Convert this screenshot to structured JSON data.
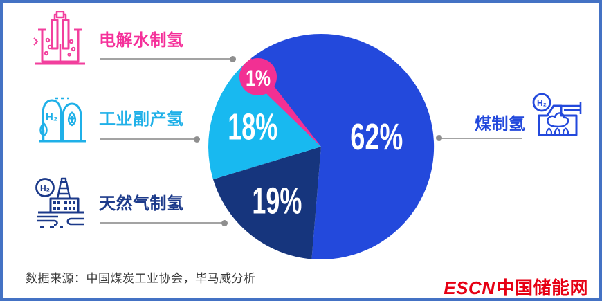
{
  "chart_data": {
    "type": "pie",
    "units": "%",
    "start_angle_deg": -38.4,
    "legend_position": "callouts-left-and-right",
    "series": [
      {
        "name": "煤制氢",
        "value": 62,
        "label": "62%",
        "color": "#2349dc"
      },
      {
        "name": "天然气制氢",
        "value": 19,
        "label": "19%",
        "color": "#16357d"
      },
      {
        "name": "工业副产氢",
        "value": 18,
        "label": "18%",
        "color": "#18b9f0"
      },
      {
        "name": "电解水制氢",
        "value": 1,
        "label": "1%",
        "color": "#f23093"
      }
    ]
  },
  "legend": {
    "left_items": [
      {
        "label": "电解水制氢",
        "color": "#f5309a",
        "icon": "electrolysis-icon"
      },
      {
        "label": "工业副产氢",
        "color": "#1fb0e8",
        "icon": "hydrogen-cylinders-icon",
        "icon_text": "H₂"
      },
      {
        "label": "天然气制氢",
        "color": "#1c3a8a",
        "icon": "gas-platform-icon",
        "icon_text": "H₂"
      }
    ],
    "right_items": [
      {
        "label": "煤制氢",
        "color": "#2349dc",
        "icon": "coal-furnace-icon",
        "icon_text": "H₂"
      }
    ]
  },
  "footer": {
    "source": "数据来源：中国煤炭工业协会，毕马威分析",
    "logo_en": "ESCN",
    "logo_cn": "中国储能网",
    "logo_color": "#e60014"
  }
}
